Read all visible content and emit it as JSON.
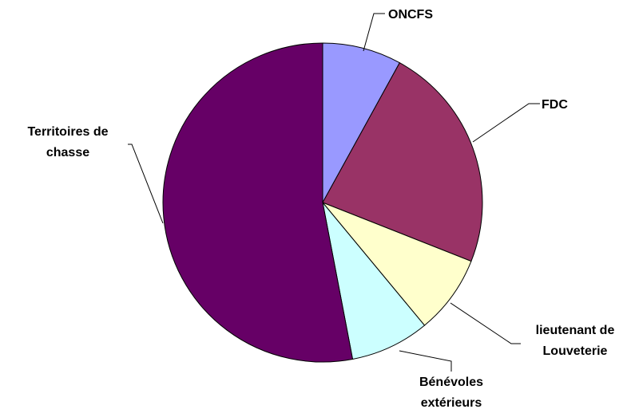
{
  "chart_data": {
    "type": "pie",
    "title": "",
    "start_angle_deg": 0,
    "direction": "clockwise",
    "legend": "none",
    "slices": [
      {
        "label": "ONCFS",
        "value": 8,
        "color": "#9999ff"
      },
      {
        "label": "FDC",
        "value": 23,
        "color": "#993366"
      },
      {
        "label": "lieutenant de Louveterie",
        "value": 8,
        "color": "#ffffcc"
      },
      {
        "label": "Bénévoles extérieurs",
        "value": 8,
        "color": "#ccffff"
      },
      {
        "label": "Territoires de chasse",
        "value": 53,
        "color": "#660066"
      }
    ]
  }
}
